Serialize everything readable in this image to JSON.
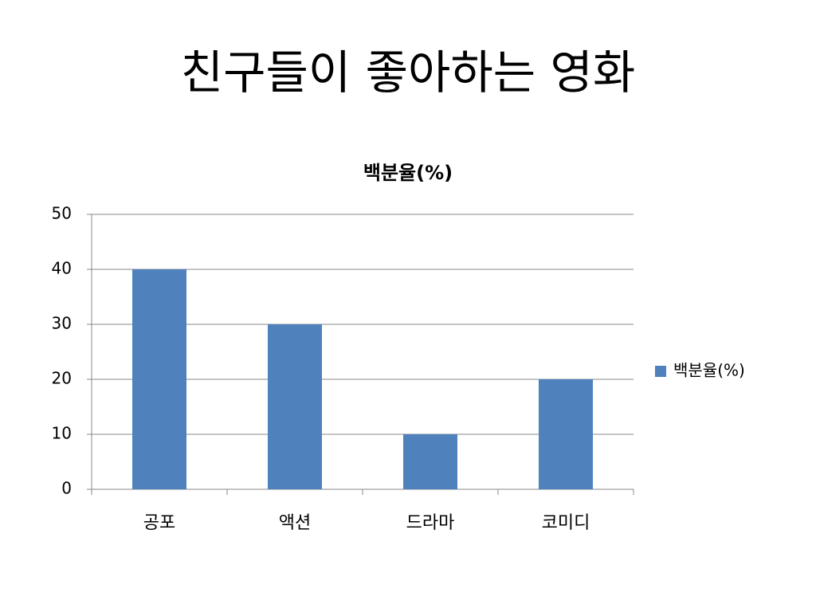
{
  "heading": "친구들이 좋아하는 영화",
  "chart_data": {
    "type": "bar",
    "title": "백분율(%)",
    "categories": [
      "공포",
      "액션",
      "드라마",
      "코미디"
    ],
    "series": [
      {
        "name": "백분율(%)",
        "color": "#4f81bd",
        "values": [
          40,
          30,
          10,
          20
        ]
      }
    ],
    "ylim": [
      0,
      50
    ],
    "yticks": [
      0,
      10,
      20,
      30,
      40,
      50
    ],
    "grid": true,
    "legend": "right"
  }
}
